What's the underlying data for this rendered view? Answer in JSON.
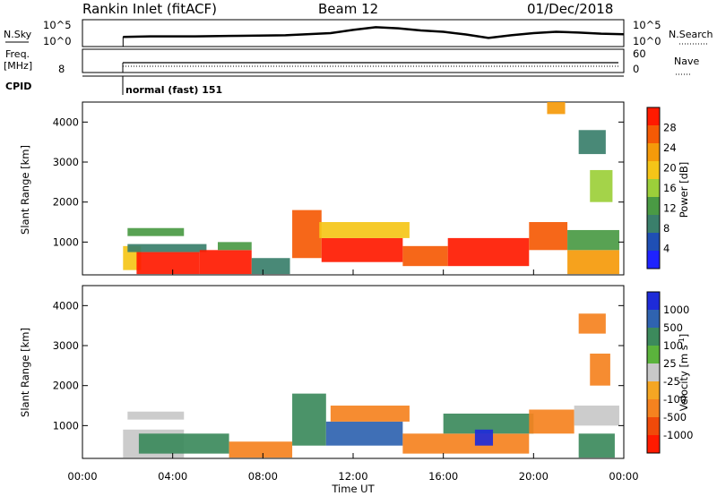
{
  "header": {
    "station": "Rankin Inlet (fitACF)",
    "beam": "Beam 12",
    "date": "01/Dec/2018"
  },
  "sky_panel": {
    "left_label": "N.Sky",
    "right_label": "N.Search",
    "left_ticks": [
      "10^5",
      "10^0"
    ],
    "right_ticks": [
      "10^5",
      "10^0"
    ]
  },
  "freq_panel": {
    "left_label_line1": "Freq.",
    "left_label_line2": "[MHz]",
    "right_label": "Nave",
    "left_ticks": [
      "8"
    ],
    "right_ticks": [
      "60",
      "0"
    ]
  },
  "cpid": {
    "label": "CPID",
    "mode_text": "normal (fast) 151"
  },
  "colors": {
    "power": [
      "#1e23ff",
      "#1f4fb4",
      "#3a7f6b",
      "#4a9a44",
      "#9ccf3a",
      "#f5c518",
      "#f59a0a",
      "#f55a05",
      "#ff1a00"
    ],
    "velocity": [
      "#1e2bd8",
      "#2f63b0",
      "#3c8a5c",
      "#5bb33c",
      "#c8c8c8",
      "#f5a623",
      "#f5821f",
      "#f04a0a",
      "#ff1a00"
    ]
  },
  "chart_data": [
    {
      "type": "heatmap",
      "panel": "power",
      "ylabel": "Slant Range [km]",
      "yticks": [
        1000,
        2000,
        3000,
        4000
      ],
      "ylim": [
        180,
        4500
      ],
      "xlim": [
        0,
        24
      ],
      "colorbar_label": "Power [dB]",
      "colorbar_ticks": [
        "28",
        "24",
        "20",
        "16",
        "12",
        "8",
        "4"
      ],
      "colorbar_range": [
        0,
        32
      ],
      "regions": [
        {
          "t0": 1.8,
          "t1": 2.6,
          "r0": 300,
          "r1": 900,
          "v": 18
        },
        {
          "t0": 2.4,
          "t1": 5.2,
          "r0": 200,
          "r1": 750,
          "v": 30
        },
        {
          "t0": 2.0,
          "t1": 5.5,
          "r0": 750,
          "r1": 950,
          "v": 9
        },
        {
          "t0": 2.0,
          "t1": 4.5,
          "r0": 1150,
          "r1": 1350,
          "v": 12
        },
        {
          "t0": 5.2,
          "t1": 7.5,
          "r0": 200,
          "r1": 800,
          "v": 29
        },
        {
          "t0": 6.0,
          "t1": 7.5,
          "r0": 800,
          "r1": 1000,
          "v": 12
        },
        {
          "t0": 7.5,
          "t1": 9.2,
          "r0": 200,
          "r1": 600,
          "v": 10
        },
        {
          "t0": 9.3,
          "t1": 10.6,
          "r0": 600,
          "r1": 1800,
          "v": 26
        },
        {
          "t0": 10.6,
          "t1": 14.2,
          "r0": 500,
          "r1": 1100,
          "v": 30
        },
        {
          "t0": 10.5,
          "t1": 14.5,
          "r0": 1100,
          "r1": 1500,
          "v": 20
        },
        {
          "t0": 14.2,
          "t1": 16.2,
          "r0": 400,
          "r1": 900,
          "v": 27
        },
        {
          "t0": 16.2,
          "t1": 19.8,
          "r0": 400,
          "r1": 1100,
          "v": 30
        },
        {
          "t0": 19.8,
          "t1": 21.5,
          "r0": 800,
          "r1": 1500,
          "v": 26
        },
        {
          "t0": 21.5,
          "t1": 23.8,
          "r0": 200,
          "r1": 800,
          "v": 24
        },
        {
          "t0": 21.5,
          "t1": 23.8,
          "r0": 800,
          "r1": 1300,
          "v": 12
        },
        {
          "t0": 22.0,
          "t1": 23.2,
          "r0": 3200,
          "r1": 3800,
          "v": 8
        },
        {
          "t0": 22.5,
          "t1": 23.5,
          "r0": 2000,
          "r1": 2800,
          "v": 15
        },
        {
          "t0": 20.6,
          "t1": 21.4,
          "r0": 4200,
          "r1": 4500,
          "v": 22
        }
      ]
    },
    {
      "type": "heatmap",
      "panel": "velocity",
      "ylabel": "Slant Range [km]",
      "yticks": [
        1000,
        2000,
        3000,
        4000
      ],
      "ylim": [
        180,
        4500
      ],
      "xlim": [
        0,
        24
      ],
      "xticks": [
        "00:00",
        "04:00",
        "08:00",
        "12:00",
        "16:00",
        "20:00",
        "00:00"
      ],
      "xlabel": "Time UT",
      "colorbar_label": "Velocity",
      "colorbar_ticks": [
        "1000",
        "500",
        "100",
        "25",
        "-25",
        "-100",
        "-500",
        "-1000"
      ],
      "colorbar_range": [
        -1200,
        1200
      ],
      "regions": [
        {
          "t0": 1.8,
          "t1": 4.5,
          "r0": 200,
          "r1": 900,
          "v": 0
        },
        {
          "t0": 2.5,
          "t1": 6.5,
          "r0": 300,
          "r1": 800,
          "v": 150
        },
        {
          "t0": 2.0,
          "t1": 4.5,
          "r0": 1150,
          "r1": 1350,
          "v": 0
        },
        {
          "t0": 6.5,
          "t1": 9.3,
          "r0": 200,
          "r1": 600,
          "v": -150
        },
        {
          "t0": 9.3,
          "t1": 10.8,
          "r0": 500,
          "r1": 1800,
          "v": 200
        },
        {
          "t0": 10.8,
          "t1": 14.2,
          "r0": 500,
          "r1": 1100,
          "v": 500
        },
        {
          "t0": 11.0,
          "t1": 14.5,
          "r0": 1100,
          "r1": 1500,
          "v": -150
        },
        {
          "t0": 14.2,
          "t1": 19.8,
          "r0": 300,
          "r1": 800,
          "v": -200
        },
        {
          "t0": 16.0,
          "t1": 20.0,
          "r0": 800,
          "r1": 1300,
          "v": 100
        },
        {
          "t0": 17.4,
          "t1": 18.2,
          "r0": 500,
          "r1": 900,
          "v": 800
        },
        {
          "t0": 19.8,
          "t1": 21.8,
          "r0": 800,
          "r1": 1400,
          "v": -200
        },
        {
          "t0": 21.8,
          "t1": 23.8,
          "r0": 1000,
          "r1": 1500,
          "v": 0
        },
        {
          "t0": 22.0,
          "t1": 23.6,
          "r0": 200,
          "r1": 800,
          "v": 100
        },
        {
          "t0": 22.5,
          "t1": 23.4,
          "r0": 2000,
          "r1": 2800,
          "v": -200
        },
        {
          "t0": 22.0,
          "t1": 23.2,
          "r0": 3300,
          "r1": 3800,
          "v": -150
        }
      ]
    },
    {
      "type": "line",
      "panel": "noise",
      "xlim": [
        0,
        24
      ],
      "x": [
        1.8,
        3,
        5,
        7,
        9,
        11,
        12,
        13,
        14,
        15,
        16,
        17,
        18,
        19,
        20,
        21,
        22,
        23,
        24
      ],
      "series": [
        {
          "values": [
            0.36,
            0.38,
            0.38,
            0.4,
            0.42,
            0.5,
            0.62,
            0.72,
            0.68,
            0.6,
            0.55,
            0.45,
            0.32,
            0.42,
            0.5,
            0.55,
            0.52,
            0.48,
            0.46
          ]
        }
      ]
    }
  ]
}
